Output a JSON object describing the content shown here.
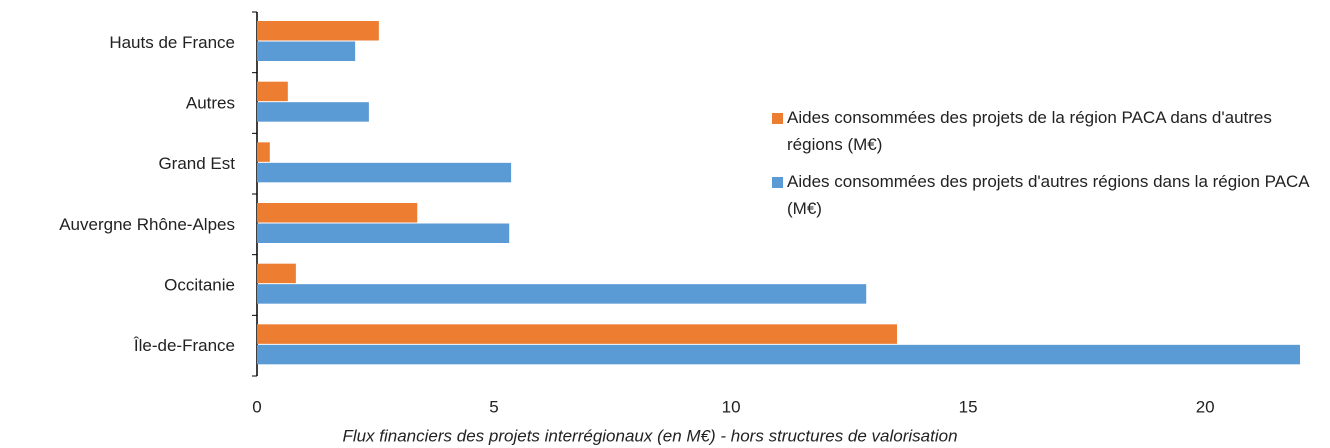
{
  "chart_data": {
    "type": "hbar",
    "xlabel": "Flux financiers des projets interrégionaux (en M€) - hors structures de valorisation",
    "categories": [
      "Hauts de France",
      "Autres",
      "Grand Est",
      "Auvergne Rhône-Alpes",
      "Occitanie",
      "Île-de-France"
    ],
    "series": [
      {
        "name": "Aides consommées des projets de la région PACA dans d'autres régions (M€)",
        "color": "#ed7d31",
        "values": [
          2.57,
          0.65,
          0.27,
          3.38,
          0.82,
          13.5
        ]
      },
      {
        "name": "Aides consommées des projets d'autres régions dans la région PACA (M€)",
        "color": "#5b9bd5",
        "values": [
          2.07,
          2.36,
          5.36,
          5.32,
          12.85,
          22.0
        ]
      }
    ],
    "xlim": [
      0,
      22
    ],
    "xticks": [
      0,
      5,
      10,
      15,
      20
    ],
    "grid": false,
    "legend": "right"
  }
}
